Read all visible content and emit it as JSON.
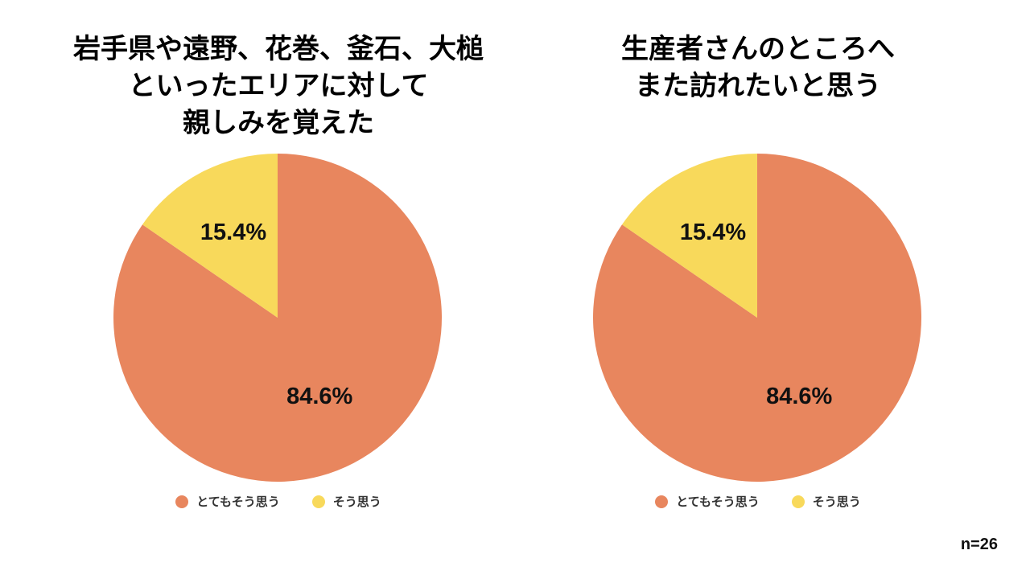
{
  "chart_data": [
    {
      "type": "pie",
      "title_lines": [
        "岩手県や遠野、花巻、釜石、大槌",
        "といったエリアに対して",
        "親しみを覚えた"
      ],
      "slices": [
        {
          "label": "とてもそう思う",
          "value": 84.6,
          "display": "84.6%",
          "color": "#E8865E"
        },
        {
          "label": "そう思う",
          "value": 15.4,
          "display": "15.4%",
          "color": "#F8D95B"
        }
      ],
      "start": "12 o'clock",
      "direction": "clockwise",
      "legend_position": "bottom"
    },
    {
      "type": "pie",
      "title_lines": [
        "生産者さんのところへ",
        "また訪れたいと思う"
      ],
      "slices": [
        {
          "label": "とてもそう思う",
          "value": 84.6,
          "display": "84.6%",
          "color": "#E8865E"
        },
        {
          "label": "そう思う",
          "value": 15.4,
          "display": "15.4%",
          "color": "#F8D95B"
        }
      ],
      "start": "12 o'clock",
      "direction": "clockwise",
      "legend_position": "bottom"
    }
  ],
  "footnote": "n=26"
}
